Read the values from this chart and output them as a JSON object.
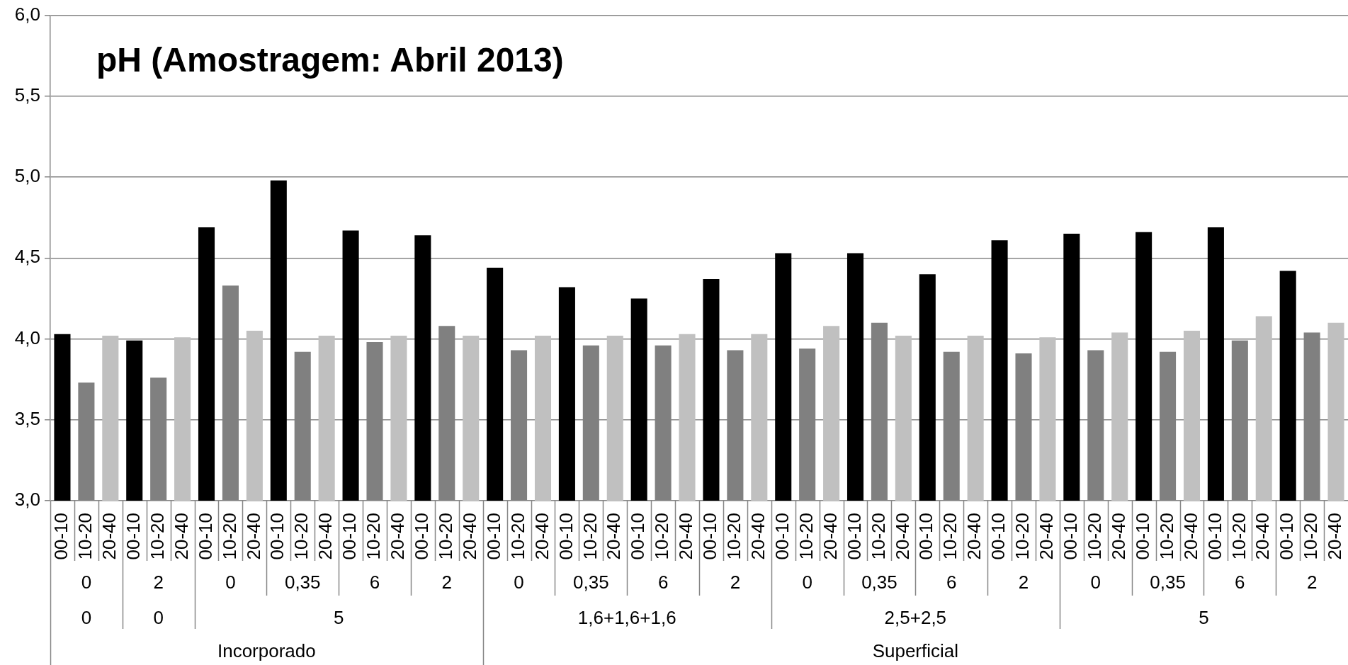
{
  "chart_data": {
    "type": "bar",
    "title": "pH (Amostragem: Abril 2013)",
    "categories": [
      "00-10",
      "10-20",
      "20-40",
      "00-10",
      "10-20",
      "20-40",
      "00-10",
      "10-20",
      "20-40",
      "00-10",
      "10-20",
      "20-40",
      "00-10",
      "10-20",
      "20-40",
      "00-10",
      "10-20",
      "20-40",
      "00-10",
      "10-20",
      "20-40",
      "00-10",
      "10-20",
      "20-40",
      "00-10",
      "10-20",
      "20-40",
      "00-10",
      "10-20",
      "20-40",
      "00-10",
      "10-20",
      "20-40",
      "00-10",
      "10-20",
      "20-40",
      "00-10",
      "10-20",
      "20-40",
      "00-10",
      "10-20",
      "20-40",
      "00-10",
      "10-20",
      "20-40",
      "00-10",
      "10-20",
      "20-40",
      "00-10",
      "10-20",
      "20-40",
      "00-10",
      "10-20",
      "20-40"
    ],
    "values": [
      4.03,
      3.73,
      4.02,
      3.99,
      3.76,
      4.01,
      4.69,
      4.33,
      4.05,
      4.98,
      3.92,
      4.02,
      4.67,
      3.98,
      4.02,
      4.64,
      4.08,
      4.02,
      4.44,
      3.93,
      4.02,
      4.32,
      3.96,
      4.02,
      4.25,
      3.96,
      4.03,
      4.37,
      3.93,
      4.03,
      4.53,
      3.94,
      4.08,
      4.53,
      4.1,
      4.02,
      4.4,
      3.92,
      4.02,
      4.61,
      3.91,
      4.01,
      4.65,
      3.93,
      4.04,
      4.66,
      3.92,
      4.05,
      4.69,
      3.99,
      4.14,
      4.42,
      4.04,
      4.1
    ],
    "colors": [
      "#000000",
      "#808080",
      "#c0c0c0",
      "#000000",
      "#808080",
      "#c0c0c0",
      "#000000",
      "#808080",
      "#c0c0c0",
      "#000000",
      "#808080",
      "#c0c0c0",
      "#000000",
      "#808080",
      "#c0c0c0",
      "#000000",
      "#808080",
      "#c0c0c0",
      "#000000",
      "#808080",
      "#c0c0c0",
      "#000000",
      "#808080",
      "#c0c0c0",
      "#000000",
      "#808080",
      "#c0c0c0",
      "#000000",
      "#808080",
      "#c0c0c0",
      "#000000",
      "#808080",
      "#c0c0c0",
      "#000000",
      "#808080",
      "#c0c0c0",
      "#000000",
      "#808080",
      "#c0c0c0",
      "#000000",
      "#808080",
      "#c0c0c0",
      "#000000",
      "#808080",
      "#c0c0c0",
      "#000000",
      "#808080",
      "#c0c0c0",
      "#000000",
      "#808080",
      "#c0c0c0",
      "#000000",
      "#808080",
      "#c0c0c0"
    ],
    "ylim": [
      3,
      6
    ],
    "yticks": [
      {
        "value": 3,
        "label": "3,0"
      },
      {
        "value": 3.5,
        "label": "3,5"
      },
      {
        "value": 4,
        "label": "4,0"
      },
      {
        "value": 4.5,
        "label": "4,5"
      },
      {
        "value": 5,
        "label": "5,0"
      },
      {
        "value": 5.5,
        "label": "5,5"
      },
      {
        "value": 6,
        "label": "6,0"
      }
    ],
    "grid": "y",
    "annotations": [
      "0",
      "2",
      "0",
      "0,35",
      "6",
      "2",
      "0",
      "0,35",
      "6",
      "2",
      "0",
      "0,35",
      "6",
      "2",
      "0",
      "0,35",
      "6",
      "2",
      "0",
      "0",
      "5",
      "1,6+1,6+1,6",
      "2,5+2,5",
      "5",
      "Incorporado",
      "Superficial"
    ]
  }
}
